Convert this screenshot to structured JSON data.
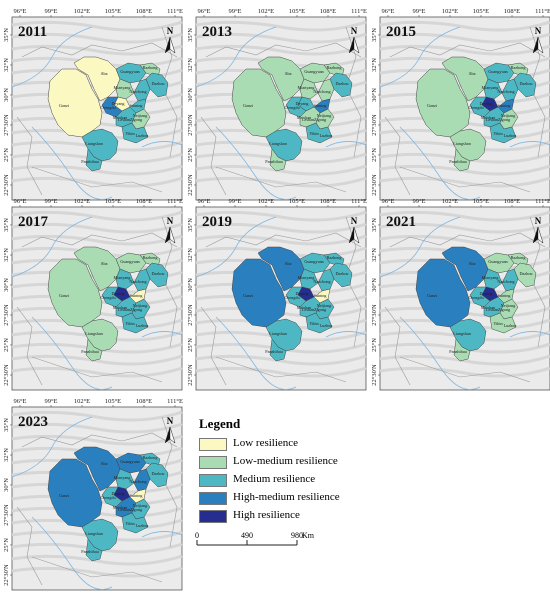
{
  "lon_ticks": [
    "96°E",
    "99°E",
    "102°E",
    "105°E",
    "108°E",
    "111°E"
  ],
  "lat_ticks": [
    "35°N",
    "32°N",
    "30°N",
    "27°30'N",
    "25°N",
    "22°30'N"
  ],
  "north_label": "N",
  "place_names": [
    "Aba",
    "Ganzi",
    "Liangshan",
    "Panzhihua",
    "Guangyuan",
    "Bazhong",
    "Dazhou",
    "Mianyang",
    "Nanchong",
    "Deyang",
    "Suining",
    "Chengdu",
    "Ya'an",
    "Meishan",
    "Leshan",
    "Neijiang",
    "Zigong",
    "Yibin",
    "Luzhou"
  ],
  "colors": {
    "low": "#fbf8c2",
    "low_medium": "#a9dcb3",
    "medium": "#4db8c3",
    "high_medium": "#2a80bf",
    "high": "#252d8e"
  },
  "panels": [
    {
      "year": "2011",
      "ganzi": "low",
      "aba": "low",
      "liangshan": "medium",
      "panzhihua": "medium",
      "east": [
        "medium",
        "low_medium",
        "medium",
        "low_medium",
        "medium",
        "low",
        "medium",
        "high_medium",
        "medium",
        "low_medium",
        "medium"
      ]
    },
    {
      "year": "2013",
      "ganzi": "low_medium",
      "aba": "low_medium",
      "liangshan": "medium",
      "panzhihua": "low_medium",
      "east": [
        "low_medium",
        "low_medium",
        "medium",
        "low_medium",
        "low_medium",
        "medium",
        "high_medium",
        "medium",
        "low_medium",
        "low_medium",
        "medium"
      ]
    },
    {
      "year": "2015",
      "ganzi": "low_medium",
      "aba": "low_medium",
      "liangshan": "low_medium",
      "panzhihua": "low_medium",
      "east": [
        "medium",
        "low_medium",
        "medium",
        "medium",
        "medium",
        "high",
        "high_medium",
        "medium",
        "medium",
        "low_medium",
        "medium"
      ]
    },
    {
      "year": "2017",
      "ganzi": "low_medium",
      "aba": "low_medium",
      "liangshan": "low_medium",
      "panzhihua": "low_medium",
      "east": [
        "low_medium",
        "low_medium",
        "medium",
        "medium",
        "medium",
        "high",
        "low",
        "medium",
        "medium",
        "medium",
        "medium"
      ]
    },
    {
      "year": "2019",
      "ganzi": "high_medium",
      "aba": "high_medium",
      "liangshan": "medium",
      "panzhihua": "medium",
      "east": [
        "medium",
        "medium",
        "medium",
        "medium",
        "medium",
        "high",
        "low",
        "medium",
        "medium",
        "medium",
        "medium"
      ]
    },
    {
      "year": "2021",
      "ganzi": "high_medium",
      "aba": "high_medium",
      "liangshan": "medium",
      "panzhihua": "low_medium",
      "east": [
        "low_medium",
        "low_medium",
        "low_medium",
        "medium",
        "medium",
        "high",
        "low_medium",
        "medium",
        "medium",
        "low_medium",
        "low_medium"
      ]
    },
    {
      "year": "2023",
      "ganzi": "high_medium",
      "aba": "high_medium",
      "liangshan": "medium",
      "panzhihua": "medium",
      "east": [
        "high_medium",
        "medium",
        "medium",
        "medium",
        "high_medium",
        "high",
        "low",
        "medium",
        "high_medium",
        "medium",
        "medium"
      ]
    }
  ],
  "legend": {
    "title": "Legend",
    "items": [
      {
        "key": "low",
        "label": "Low resilience"
      },
      {
        "key": "low_medium",
        "label": "Low-medium resilience"
      },
      {
        "key": "medium",
        "label": "Medium resilience"
      },
      {
        "key": "high_medium",
        "label": "High-medium resilience"
      },
      {
        "key": "high",
        "label": "High resilience"
      }
    ]
  },
  "scale_bar": {
    "ticks": [
      "0",
      "490",
      "980"
    ],
    "unit": "Km"
  }
}
